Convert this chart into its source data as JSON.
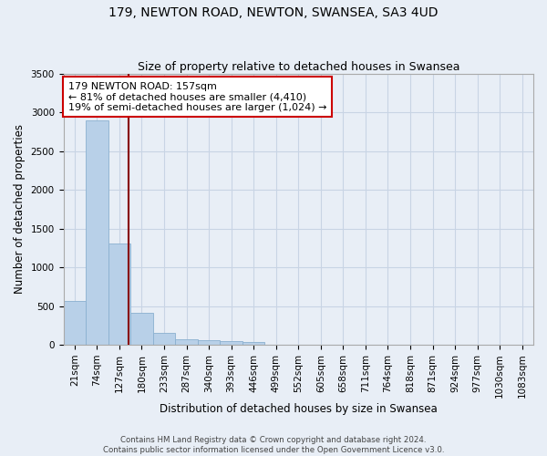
{
  "title": "179, NEWTON ROAD, NEWTON, SWANSEA, SA3 4UD",
  "subtitle": "Size of property relative to detached houses in Swansea",
  "xlabel": "Distribution of detached houses by size in Swansea",
  "ylabel": "Number of detached properties",
  "bin_labels": [
    "21sqm",
    "74sqm",
    "127sqm",
    "180sqm",
    "233sqm",
    "287sqm",
    "340sqm",
    "393sqm",
    "446sqm",
    "499sqm",
    "552sqm",
    "605sqm",
    "658sqm",
    "711sqm",
    "764sqm",
    "818sqm",
    "871sqm",
    "924sqm",
    "977sqm",
    "1030sqm",
    "1083sqm"
  ],
  "bar_heights": [
    570,
    2900,
    1310,
    410,
    155,
    75,
    55,
    45,
    40,
    0,
    0,
    0,
    0,
    0,
    0,
    0,
    0,
    0,
    0,
    0,
    0
  ],
  "bar_color": "#b8d0e8",
  "bar_edgecolor": "#8ab0d0",
  "grid_color": "#c8d4e4",
  "background_color": "#e8eef6",
  "ylim": [
    0,
    3500
  ],
  "yticks": [
    0,
    500,
    1000,
    1500,
    2000,
    2500,
    3000,
    3500
  ],
  "marker_bin_index": 2.43,
  "annotation_line1": "179 NEWTON ROAD: 157sqm",
  "annotation_line2": "← 81% of detached houses are smaller (4,410)",
  "annotation_line3": "19% of semi-detached houses are larger (1,024) →",
  "annotation_box_color": "#ffffff",
  "annotation_box_edgecolor": "#cc0000",
  "marker_line_color": "#880000",
  "footer_line1": "Contains HM Land Registry data © Crown copyright and database right 2024.",
  "footer_line2": "Contains public sector information licensed under the Open Government Licence v3.0.",
  "title_fontsize": 10,
  "subtitle_fontsize": 9,
  "axis_label_fontsize": 8.5,
  "tick_fontsize": 7.5,
  "annotation_fontsize": 8
}
